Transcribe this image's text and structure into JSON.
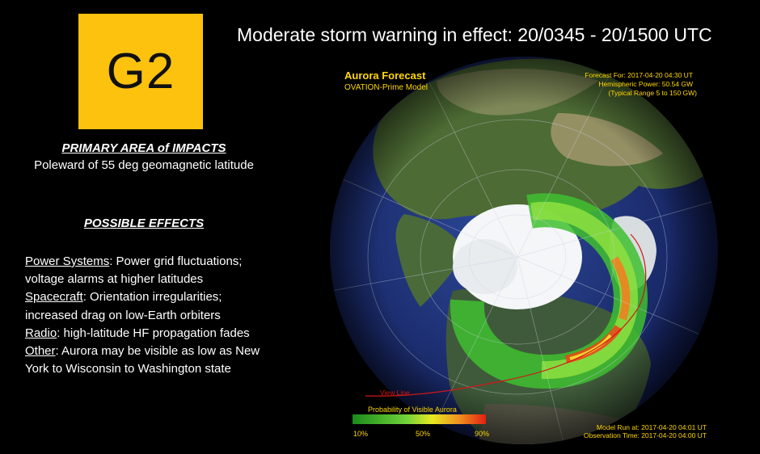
{
  "badge": {
    "label": "G2",
    "color": "#fdc20e"
  },
  "headline": "Moderate storm warning in effect: 20/0345 - 20/1500 UTC",
  "impacts": {
    "heading": "PRIMARY AREA of IMPACTS",
    "text": "Poleward of 55 deg geomagnetic latitude"
  },
  "effects": {
    "heading": "POSSIBLE EFFECTS",
    "items": [
      {
        "label": "Power Systems",
        "text": ": Power grid fluctuations; voltage alarms at higher latitudes"
      },
      {
        "label": "Spacecraft",
        "text": ": Orientation irregularities; increased drag on low-Earth orbiters"
      },
      {
        "label": "Radio",
        "text": ": high-latitude HF propagation fades"
      },
      {
        "label": "Other",
        "text": ": Aurora may be visible as low as New York to Wisconsin to Washington state"
      }
    ]
  },
  "forecast": {
    "title": "Aurora Forecast",
    "model": "OVATION-Prime Model",
    "forecast_for": "Forecast For: 2017-04-20 04:30 UT",
    "hemispheric_power": "Hemispheric Power: 50.54 GW",
    "typical_range": "(Typical Range 5 to 150 GW)",
    "view_line": "View Line",
    "probability_label": "Probability of Visible Aurora",
    "scale_ticks": [
      "10%",
      "50%",
      "90%"
    ],
    "model_run": "Model Run at: 2017-04-20 04:01 UT",
    "observation_time": "Observation Time: 2017-04-20 04:00 UT"
  },
  "colors": {
    "title_yellow": "#ffd800",
    "view_line_red": "#d01818",
    "ocean": "#1a2a6a"
  }
}
